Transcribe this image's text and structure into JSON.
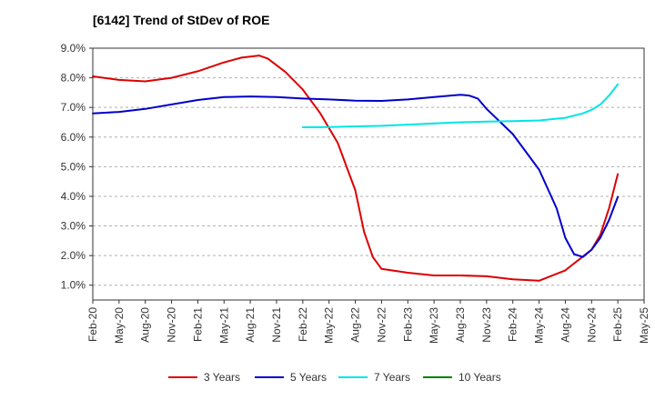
{
  "chart_data": {
    "type": "line",
    "title": "[6142]  Trend of StDev of ROE",
    "xlabel": "",
    "ylabel": "",
    "x_ticks": [
      "Feb-20",
      "May-20",
      "Aug-20",
      "Nov-20",
      "Feb-21",
      "May-21",
      "Aug-21",
      "Nov-21",
      "Feb-22",
      "May-22",
      "Aug-22",
      "Nov-22",
      "Feb-23",
      "May-23",
      "Aug-23",
      "Nov-23",
      "Feb-24",
      "May-24",
      "Aug-24",
      "Nov-24",
      "Feb-25",
      "May-25"
    ],
    "y_ticks": [
      "1.0%",
      "2.0%",
      "3.0%",
      "4.0%",
      "5.0%",
      "6.0%",
      "7.0%",
      "8.0%",
      "9.0%"
    ],
    "ylim": [
      0.5,
      9.0
    ],
    "grid": "horizontal dashed",
    "legend_position": "bottom",
    "series": [
      {
        "name": "3 Years",
        "color": "#dd0000",
        "values": [
          [
            "Feb-20",
            8.05
          ],
          [
            "May-20",
            7.93
          ],
          [
            "Aug-20",
            7.88
          ],
          [
            "Nov-20",
            8.0
          ],
          [
            "Feb-21",
            8.22
          ],
          [
            "May-21",
            8.52
          ],
          [
            "Jul-21",
            8.68
          ],
          [
            "Sep-21",
            8.75
          ],
          [
            "Oct-21",
            8.65
          ],
          [
            "Dec-21",
            8.2
          ],
          [
            "Feb-22",
            7.6
          ],
          [
            "Apr-22",
            6.8
          ],
          [
            "Jun-22",
            5.8
          ],
          [
            "Aug-22",
            4.2
          ],
          [
            "Sep-22",
            2.8
          ],
          [
            "Oct-22",
            1.95
          ],
          [
            "Nov-22",
            1.55
          ],
          [
            "Feb-23",
            1.42
          ],
          [
            "May-23",
            1.33
          ],
          [
            "Aug-23",
            1.33
          ],
          [
            "Nov-23",
            1.3
          ],
          [
            "Feb-24",
            1.2
          ],
          [
            "May-24",
            1.15
          ],
          [
            "Aug-24",
            1.5
          ],
          [
            "Nov-24",
            2.2
          ],
          [
            "Dec-24",
            2.7
          ],
          [
            "Jan-25",
            3.6
          ],
          [
            "Feb-25",
            4.75
          ]
        ]
      },
      {
        "name": "5 Years",
        "color": "#0000cc",
        "values": [
          [
            "Feb-20",
            6.8
          ],
          [
            "May-20",
            6.85
          ],
          [
            "Aug-20",
            6.95
          ],
          [
            "Nov-20",
            7.1
          ],
          [
            "Feb-21",
            7.25
          ],
          [
            "May-21",
            7.35
          ],
          [
            "Aug-21",
            7.37
          ],
          [
            "Nov-21",
            7.35
          ],
          [
            "Feb-22",
            7.3
          ],
          [
            "May-22",
            7.27
          ],
          [
            "Aug-22",
            7.23
          ],
          [
            "Nov-22",
            7.22
          ],
          [
            "Feb-23",
            7.27
          ],
          [
            "May-23",
            7.35
          ],
          [
            "Aug-23",
            7.43
          ],
          [
            "Sep-23",
            7.4
          ],
          [
            "Oct-23",
            7.3
          ],
          [
            "Nov-23",
            6.95
          ],
          [
            "Feb-24",
            6.1
          ],
          [
            "May-24",
            4.9
          ],
          [
            "Jul-24",
            3.6
          ],
          [
            "Aug-24",
            2.6
          ],
          [
            "Sep-24",
            2.05
          ],
          [
            "Oct-24",
            1.95
          ],
          [
            "Nov-24",
            2.2
          ],
          [
            "Dec-24",
            2.6
          ],
          [
            "Jan-25",
            3.2
          ],
          [
            "Feb-25",
            3.98
          ]
        ]
      },
      {
        "name": "7 Years",
        "color": "#00e5e5",
        "values": [
          [
            "Feb-22",
            6.33
          ],
          [
            "May-22",
            6.34
          ],
          [
            "Aug-22",
            6.36
          ],
          [
            "Nov-22",
            6.38
          ],
          [
            "Feb-23",
            6.42
          ],
          [
            "May-23",
            6.46
          ],
          [
            "Aug-23",
            6.5
          ],
          [
            "Nov-23",
            6.52
          ],
          [
            "Feb-24",
            6.54
          ],
          [
            "May-24",
            6.56
          ],
          [
            "Aug-24",
            6.65
          ],
          [
            "Oct-24",
            6.8
          ],
          [
            "Nov-24",
            6.92
          ],
          [
            "Dec-24",
            7.1
          ],
          [
            "Jan-25",
            7.4
          ],
          [
            "Feb-25",
            7.78
          ]
        ]
      },
      {
        "name": "10 Years",
        "color": "#008000",
        "values": []
      }
    ]
  }
}
